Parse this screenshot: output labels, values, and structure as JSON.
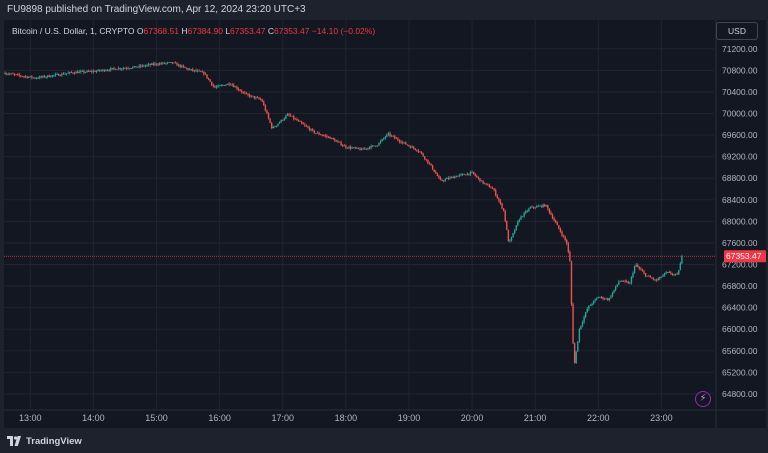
{
  "header": {
    "publish_line": "FU9898 published on TradingView.com, Apr 12, 2024 23:20 UTC+3"
  },
  "legend": {
    "symbol": "Bitcoin / U.S. Dollar, 1, CRYPTO",
    "open_label": "O",
    "open_value": "67368.51",
    "high_label": "H",
    "high_value": "67384.90",
    "low_label": "L",
    "low_value": "67353.47",
    "close_label": "C",
    "close_value": "67353.47",
    "change": "−14.10 (−0.02%)"
  },
  "currency_button": "USD",
  "last_price_label": "67353.47",
  "footer": {
    "brand": "TradingView"
  },
  "colors": {
    "up": "#26a69a",
    "down": "#ef5350",
    "price_line": "#f23645",
    "grid": "#1f2430",
    "background": "#131722",
    "text": "#b2b5be"
  },
  "icons": {
    "lightning": "lightning-icon",
    "logo": "tradingview-logo-icon"
  },
  "chart_data": {
    "type": "candlestick",
    "title": "Bitcoin / U.S. Dollar, 1, CRYPTO",
    "ylim": [
      64650,
      71400
    ],
    "yticks": [
      71200,
      70800,
      70400,
      70000,
      69600,
      69200,
      68800,
      68400,
      68000,
      67600,
      67200,
      66800,
      66400,
      66000,
      65600,
      65200,
      64800
    ],
    "ytick_labels": [
      "71200.00",
      "70800.00",
      "70400.00",
      "70000.00",
      "69600.00",
      "69200.00",
      "68800.00",
      "68400.00",
      "68000.00",
      "67600.00",
      "67200.00",
      "66800.00",
      "66400.00",
      "66000.00",
      "65600.00",
      "65200.00",
      "64800.00"
    ],
    "xlim": [
      "12:35",
      "23:50"
    ],
    "xticks": [
      "13:00",
      "14:00",
      "15:00",
      "16:00",
      "17:00",
      "18:00",
      "19:00",
      "20:00",
      "21:00",
      "22:00",
      "23:00"
    ],
    "last_price": 67353.47,
    "grid": true,
    "path": [
      [
        "12:36",
        70750
      ],
      [
        "12:50",
        70700
      ],
      [
        "13:05",
        70660
      ],
      [
        "13:20",
        70700
      ],
      [
        "13:40",
        70760
      ],
      [
        "14:00",
        70780
      ],
      [
        "14:20",
        70830
      ],
      [
        "14:40",
        70860
      ],
      [
        "15:00",
        70920
      ],
      [
        "15:15",
        70940
      ],
      [
        "15:30",
        70820
      ],
      [
        "15:45",
        70750
      ],
      [
        "15:55",
        70480
      ],
      [
        "16:10",
        70560
      ],
      [
        "16:25",
        70350
      ],
      [
        "16:40",
        70250
      ],
      [
        "16:50",
        69720
      ],
      [
        "17:05",
        69980
      ],
      [
        "17:15",
        69850
      ],
      [
        "17:30",
        69650
      ],
      [
        "17:45",
        69550
      ],
      [
        "18:00",
        69380
      ],
      [
        "18:15",
        69330
      ],
      [
        "18:30",
        69420
      ],
      [
        "18:40",
        69620
      ],
      [
        "18:55",
        69450
      ],
      [
        "19:10",
        69300
      ],
      [
        "19:20",
        69050
      ],
      [
        "19:30",
        68750
      ],
      [
        "19:45",
        68840
      ],
      [
        "20:00",
        68900
      ],
      [
        "20:10",
        68720
      ],
      [
        "20:20",
        68600
      ],
      [
        "20:30",
        68200
      ],
      [
        "20:35",
        67580
      ],
      [
        "20:45",
        68050
      ],
      [
        "20:55",
        68250
      ],
      [
        "21:10",
        68300
      ],
      [
        "21:20",
        67950
      ],
      [
        "21:30",
        67600
      ],
      [
        "21:33",
        67250
      ],
      [
        "21:35",
        66200
      ],
      [
        "21:37",
        65300
      ],
      [
        "21:42",
        66000
      ],
      [
        "21:50",
        66400
      ],
      [
        "22:00",
        66600
      ],
      [
        "22:10",
        66550
      ],
      [
        "22:20",
        66900
      ],
      [
        "22:30",
        66850
      ],
      [
        "22:35",
        67200
      ],
      [
        "22:45",
        67000
      ],
      [
        "22:55",
        66900
      ],
      [
        "23:05",
        67050
      ],
      [
        "23:15",
        67000
      ],
      [
        "23:20",
        67353.47
      ]
    ]
  }
}
